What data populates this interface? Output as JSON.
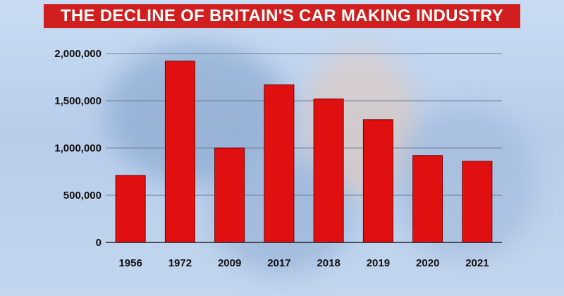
{
  "title": "THE DECLINE OF BRITAIN'S CAR MAKING INDUSTRY",
  "colors": {
    "title_background": "#d11f1f",
    "bar": "#e01010",
    "bar_edge": "#7a0000",
    "background": "#c3d6ee"
  },
  "chart_data": {
    "type": "bar",
    "title": "THE DECLINE OF BRITAIN'S CAR MAKING INDUSTRY",
    "xlabel": "",
    "ylabel": "",
    "categories": [
      "1956",
      "1972",
      "2009",
      "2017",
      "2018",
      "2019",
      "2020",
      "2021"
    ],
    "values": [
      710000,
      1920000,
      1000000,
      1670000,
      1520000,
      1300000,
      920000,
      860000
    ],
    "ylim": [
      0,
      2000000
    ],
    "yticks": [
      0,
      500000,
      1000000,
      1500000,
      2000000
    ],
    "ytick_labels": [
      "0",
      "500,000",
      "1,000,000",
      "1,500,000",
      "2,000,000"
    ],
    "grid": true,
    "legend": "none"
  }
}
